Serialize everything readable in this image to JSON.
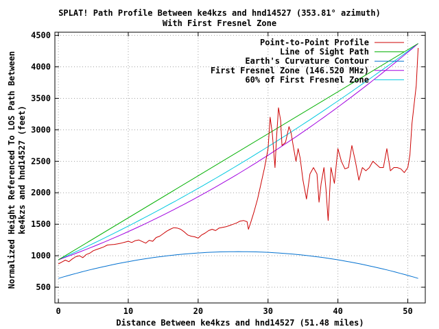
{
  "chart_data": {
    "type": "line",
    "title": "SPLAT! Path Profile Between ke4kzs and hnd14527 (353.81° azimuth)",
    "subtitle": "With First Fresnel Zone",
    "xlabel": "Distance Between ke4kzs and hnd14527 (51.48 miles)",
    "ylabel_line1": "Normalized Height Referenced To LOS Path Between",
    "ylabel_line2": "ke4kzs and hnd14527 (feet)",
    "xlim": [
      -0.5,
      52.5
    ],
    "ylim": [
      250,
      4550
    ],
    "x_ticks": [
      0,
      10,
      20,
      30,
      40,
      50
    ],
    "y_ticks": [
      500,
      1000,
      1500,
      2000,
      2500,
      3000,
      3500,
      4000,
      4500
    ],
    "grid": true,
    "legend_position": "top-right",
    "series": [
      {
        "name": "Point-to-Point Profile",
        "color": "#cc0000",
        "x": [
          0,
          0.5,
          1,
          1.5,
          2,
          2.5,
          3,
          3.5,
          4,
          4.5,
          5,
          5.5,
          6,
          6.5,
          7,
          7.5,
          8,
          8.5,
          9,
          9.5,
          10,
          10.5,
          11,
          11.5,
          12,
          12.5,
          13,
          13.5,
          14,
          14.5,
          15,
          15.5,
          16,
          16.5,
          17,
          17.5,
          18,
          18.5,
          19,
          19.5,
          20,
          20.5,
          21,
          21.5,
          22,
          22.5,
          23,
          23.5,
          24,
          24.5,
          25,
          25.5,
          26,
          26.5,
          27,
          27.2,
          27.5,
          28,
          28.5,
          29,
          29.5,
          30,
          30.3,
          30.6,
          31,
          31.2,
          31.5,
          31.8,
          32,
          32.5,
          33,
          33.3,
          33.6,
          34,
          34.3,
          34.6,
          35,
          35.5,
          36,
          36.5,
          37,
          37.3,
          37.6,
          38,
          38.3,
          38.6,
          39,
          39.5,
          40,
          40.5,
          41,
          41.5,
          42,
          42.5,
          43,
          43.5,
          44,
          44.5,
          45,
          45.5,
          46,
          46.5,
          47,
          47.5,
          48,
          48.5,
          49,
          49.5,
          50,
          50.3,
          50.6,
          51,
          51.2,
          51.48
        ],
        "y": [
          870,
          900,
          930,
          905,
          950,
          985,
          1000,
          970,
          1020,
          1040,
          1080,
          1100,
          1120,
          1140,
          1170,
          1175,
          1180,
          1190,
          1200,
          1215,
          1230,
          1210,
          1240,
          1250,
          1225,
          1200,
          1245,
          1230,
          1290,
          1310,
          1350,
          1390,
          1420,
          1445,
          1440,
          1420,
          1380,
          1330,
          1310,
          1300,
          1280,
          1330,
          1360,
          1400,
          1420,
          1400,
          1440,
          1450,
          1460,
          1480,
          1500,
          1520,
          1550,
          1560,
          1540,
          1420,
          1520,
          1700,
          1900,
          2150,
          2400,
          2700,
          3200,
          2950,
          2400,
          2850,
          3350,
          3150,
          2750,
          2800,
          3050,
          2950,
          2750,
          2500,
          2700,
          2550,
          2200,
          1900,
          2300,
          2400,
          2300,
          1850,
          2150,
          2400,
          2050,
          1560,
          2400,
          2150,
          2700,
          2500,
          2380,
          2400,
          2750,
          2500,
          2200,
          2400,
          2350,
          2400,
          2500,
          2450,
          2400,
          2400,
          2700,
          2350,
          2400,
          2400,
          2380,
          2320,
          2400,
          2600,
          3100,
          3500,
          3700,
          4300
        ]
      },
      {
        "name": "Line of Sight Path",
        "color": "#00b000",
        "x": [
          0,
          51.48
        ],
        "y": [
          935,
          4370
        ]
      },
      {
        "name": "Earth's Curvature Contour",
        "color": "#0070d0",
        "x": [
          0,
          51.48
        ],
        "y": [
          640,
          640
        ],
        "curvature_peak": 1065
      },
      {
        "name": "First Fresnel Zone (146.520 MHz)",
        "color": "#a000e0",
        "x": [
          0,
          51.48
        ],
        "y": [
          935,
          4370
        ],
        "depth": 350
      },
      {
        "name": "60% of First Fresnel Zone",
        "color": "#00c8e0",
        "x": [
          0,
          51.48
        ],
        "y": [
          935,
          4370
        ],
        "depth": 210
      }
    ]
  }
}
